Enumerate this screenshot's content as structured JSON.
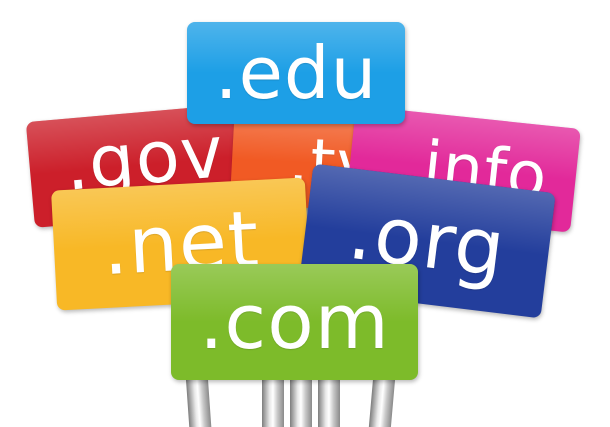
{
  "signs": {
    "edu": {
      "label": ".edu",
      "color": "#1d9fe6"
    },
    "gov": {
      "label": ".gov",
      "color": "#cc1f2a"
    },
    "tv": {
      "label": ".tv",
      "color": "#f15a24"
    },
    "info": {
      "label": ".info",
      "color": "#e2299a"
    },
    "net": {
      "label": ".net",
      "color": "#f8b826"
    },
    "org": {
      "label": ".org",
      "color": "#233e9c"
    },
    "com": {
      "label": ".com",
      "color": "#7dbb2a"
    }
  },
  "pole_color": "#d9d9d9",
  "background_color": "#ffffff"
}
